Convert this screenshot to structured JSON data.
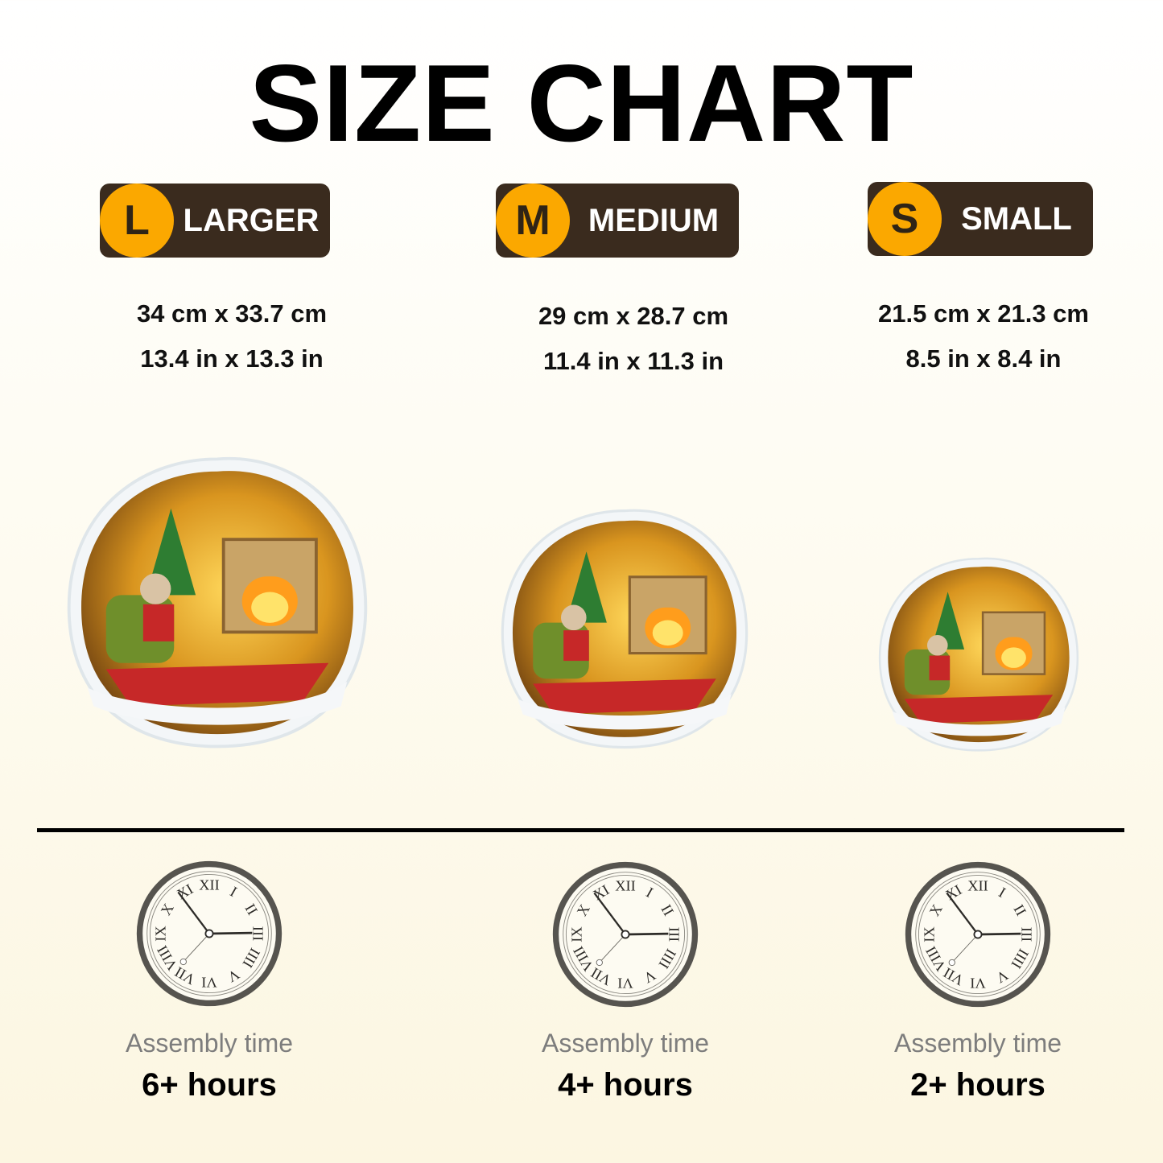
{
  "title": "SIZE CHART",
  "sizes": [
    {
      "letter": "L",
      "label": "LARGER",
      "cm": "34 cm x 33.7 cm",
      "in": "13.4 in x 13.3 in",
      "assembly_label": "Assembly time",
      "hours": "6+ hours"
    },
    {
      "letter": "M",
      "label": "MEDIUM",
      "cm": "29 cm x 28.7 cm",
      "in": "11.4 in x 11.3 in",
      "assembly_label": "Assembly time",
      "hours": "4+ hours"
    },
    {
      "letter": "S",
      "label": "SMALL",
      "cm": "21.5 cm x 21.3 cm",
      "in": "8.5 in x 8.4 in",
      "assembly_label": "Assembly time",
      "hours": "2+ hours"
    }
  ],
  "clock": {
    "numerals": [
      "XII",
      "I",
      "II",
      "III",
      "IIII",
      "V",
      "VI",
      "VII",
      "VIII",
      "IX",
      "X",
      "XI"
    ]
  },
  "colors": {
    "badge_circle": "#fba800",
    "badge_bg": "#3a2b1e"
  }
}
